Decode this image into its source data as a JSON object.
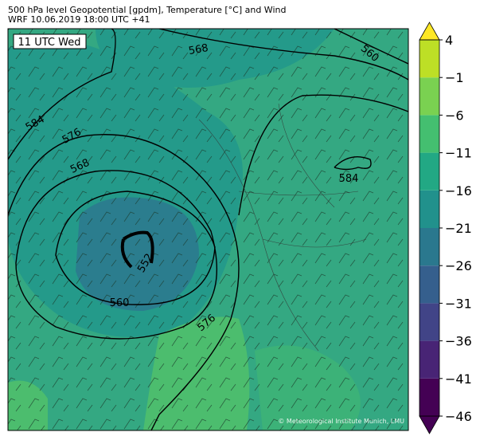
{
  "header": {
    "title": "500 hPa level Geopotential [gpdm], Temperature [°C] and Wind",
    "subtitle": "WRF 10.06.2019 18:00 UTC +41"
  },
  "map": {
    "time_label": "11 UTC Wed",
    "contour_labels": [
      "568",
      "560",
      "584",
      "576",
      "568",
      "552",
      "560",
      "576",
      "584"
    ],
    "credit": "© Meteorological Institute Munich, LMU"
  },
  "colorbar": {
    "ticks": [
      4,
      {
        "value": -1,
        "label": "−1"
      },
      {
        "value": -6,
        "label": "−6"
      },
      {
        "value": -11,
        "label": "−11"
      },
      {
        "value": -16,
        "label": "−16"
      },
      {
        "value": -21,
        "label": "−21"
      },
      {
        "value": -26,
        "label": "−26"
      },
      {
        "value": -31,
        "label": "−31"
      },
      {
        "value": -36,
        "label": "−36"
      },
      {
        "value": -41,
        "label": "−41"
      },
      {
        "value": -46,
        "label": "−46"
      }
    ],
    "lim": [
      -46,
      4
    ],
    "colors": [
      "#440154",
      "#482475",
      "#414487",
      "#355f8d",
      "#2a788e",
      "#21918c",
      "#22a884",
      "#44bf70",
      "#7ad151",
      "#bddf26"
    ],
    "over_color": "#fde725",
    "under_color": "#440154"
  }
}
